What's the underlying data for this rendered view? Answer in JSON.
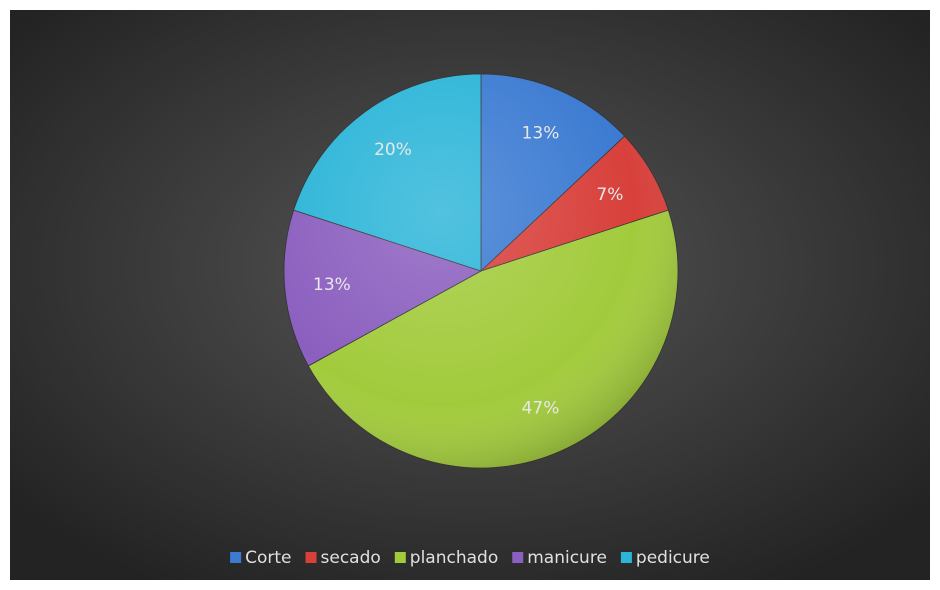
{
  "chart_data": {
    "type": "pie",
    "categories": [
      "Corte",
      "secado",
      "planchado",
      "manicure",
      "pedicure"
    ],
    "values": [
      13,
      7,
      47,
      13,
      20
    ],
    "value_labels": [
      "13%",
      "7%",
      "47%",
      "13%",
      "20%"
    ],
    "colors": [
      "#3c7bd2",
      "#d8403b",
      "#a2cb3c",
      "#8b5fbf",
      "#2cb5d8"
    ],
    "legend": "bottom"
  }
}
